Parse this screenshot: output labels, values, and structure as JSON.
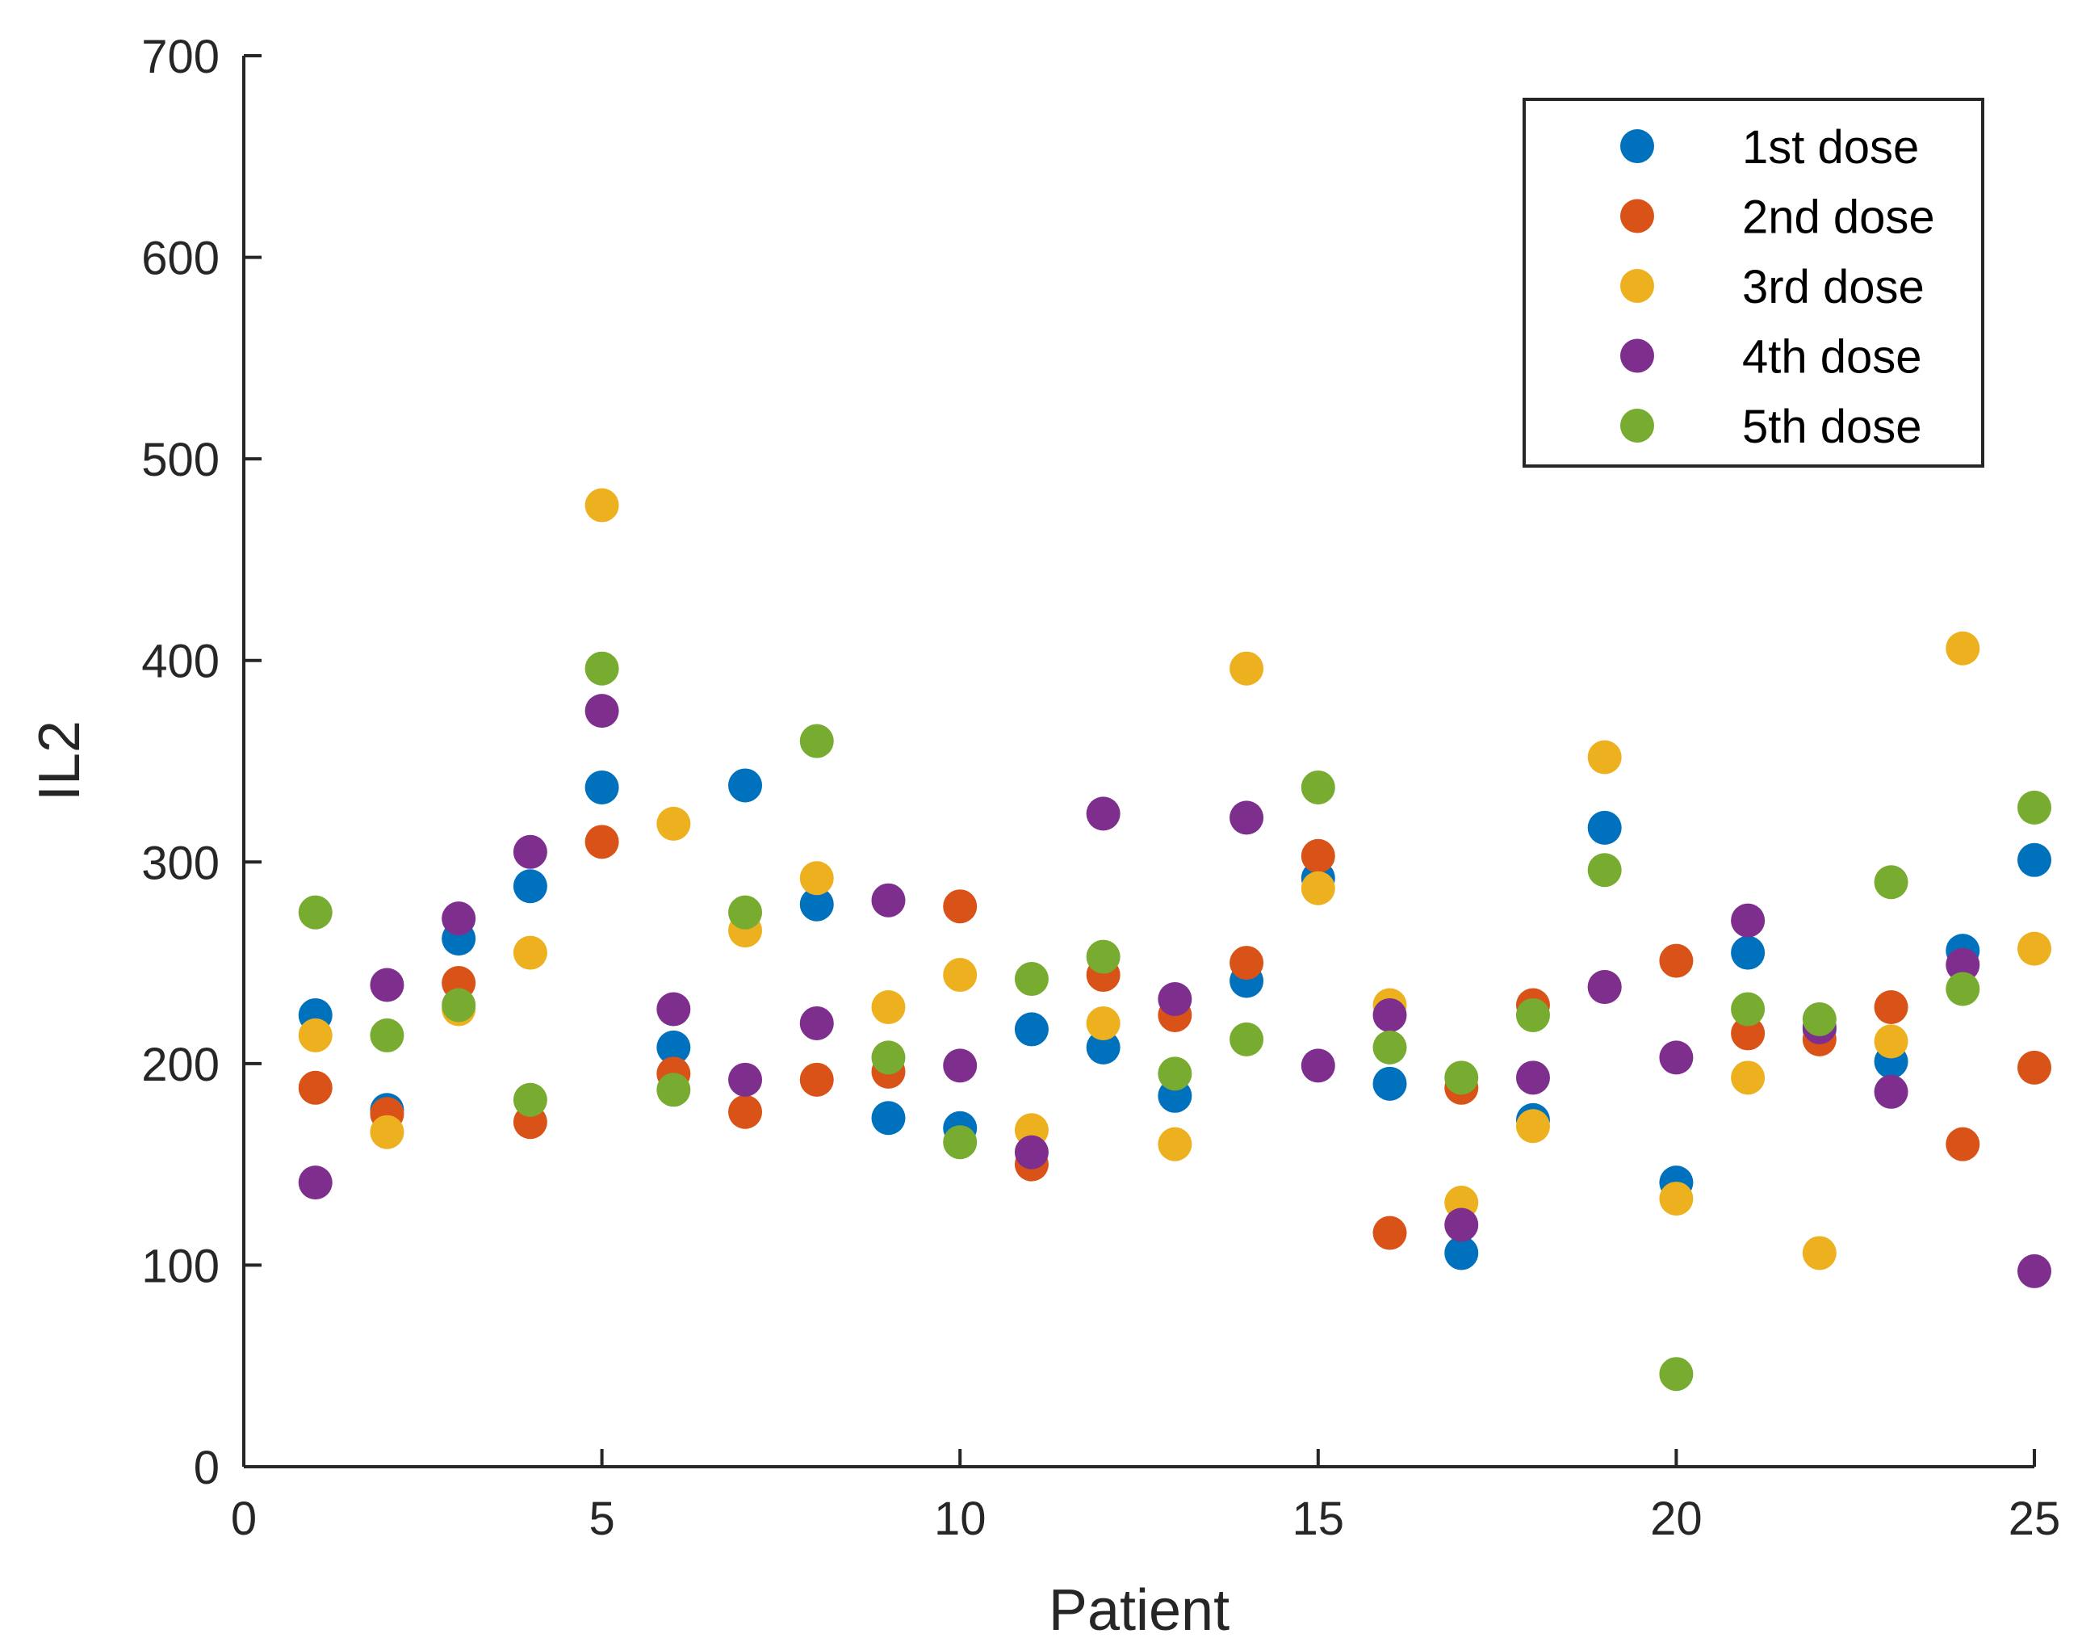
{
  "chart_data": {
    "type": "scatter",
    "title": "",
    "xlabel": "Patient",
    "ylabel": "IL2",
    "xlim": [
      0,
      25
    ],
    "ylim": [
      0,
      700
    ],
    "xticks": [
      0,
      5,
      10,
      15,
      20,
      25
    ],
    "yticks": [
      0,
      100,
      200,
      300,
      400,
      500,
      600,
      700
    ],
    "x": [
      1,
      2,
      3,
      4,
      5,
      6,
      7,
      8,
      9,
      10,
      11,
      12,
      13,
      14,
      15,
      16,
      17,
      18,
      19,
      20,
      21,
      22,
      23,
      24,
      25
    ],
    "grid": false,
    "legend_position": "top-right",
    "series": [
      {
        "name": "1st dose",
        "color": "#0072BD",
        "values": [
          224,
          177,
          262,
          288,
          337,
          208,
          338,
          279,
          173,
          168,
          217,
          208,
          184,
          241,
          292,
          190,
          106,
          172,
          317,
          141,
          255,
          217,
          201,
          256,
          301
        ]
      },
      {
        "name": "2nd dose",
        "color": "#D95319",
        "values": [
          188,
          175,
          240,
          171,
          310,
          195,
          176,
          192,
          196,
          278,
          150,
          244,
          224,
          250,
          303,
          116,
          188,
          229,
          238,
          251,
          215,
          212,
          228,
          160,
          198
        ]
      },
      {
        "name": "3rd dose",
        "color": "#EDB120",
        "values": [
          214,
          166,
          227,
          255,
          477,
          319,
          266,
          292,
          228,
          244,
          167,
          220,
          160,
          396,
          287,
          229,
          131,
          169,
          352,
          133,
          193,
          106,
          211,
          406,
          257
        ]
      },
      {
        "name": "4th dose",
        "color": "#7E2F8E",
        "values": [
          141,
          239,
          272,
          305,
          375,
          227,
          192,
          220,
          281,
          199,
          156,
          324,
          232,
          322,
          199,
          224,
          120,
          193,
          238,
          203,
          271,
          218,
          186,
          249,
          97
        ]
      },
      {
        "name": "5th dose",
        "color": "#77AC30",
        "values": [
          275,
          214,
          229,
          182,
          396,
          187,
          275,
          360,
          203,
          161,
          242,
          253,
          195,
          212,
          337,
          208,
          193,
          224,
          296,
          46,
          227,
          222,
          290,
          237,
          327
        ]
      }
    ]
  }
}
